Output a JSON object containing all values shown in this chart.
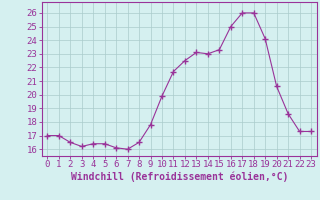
{
  "x": [
    0,
    1,
    2,
    3,
    4,
    5,
    6,
    7,
    8,
    9,
    10,
    11,
    12,
    13,
    14,
    15,
    16,
    17,
    18,
    19,
    20,
    21,
    22,
    23
  ],
  "y": [
    17.0,
    17.0,
    16.5,
    16.2,
    16.4,
    16.4,
    16.1,
    16.0,
    16.5,
    17.8,
    19.9,
    21.7,
    22.5,
    23.1,
    23.0,
    23.3,
    25.0,
    26.0,
    26.0,
    24.1,
    20.6,
    18.6,
    17.3,
    17.3
  ],
  "line_color": "#993399",
  "marker": "+",
  "marker_size": 4,
  "bg_color": "#d5f0f0",
  "grid_color": "#aacccc",
  "xlabel": "Windchill (Refroidissement éolien,°C)",
  "ylabel_ticks": [
    16,
    17,
    18,
    19,
    20,
    21,
    22,
    23,
    24,
    25,
    26
  ],
  "xlim": [
    -0.5,
    23.5
  ],
  "ylim": [
    15.5,
    26.8
  ],
  "tick_fontsize": 6.5,
  "xlabel_fontsize": 7.0
}
